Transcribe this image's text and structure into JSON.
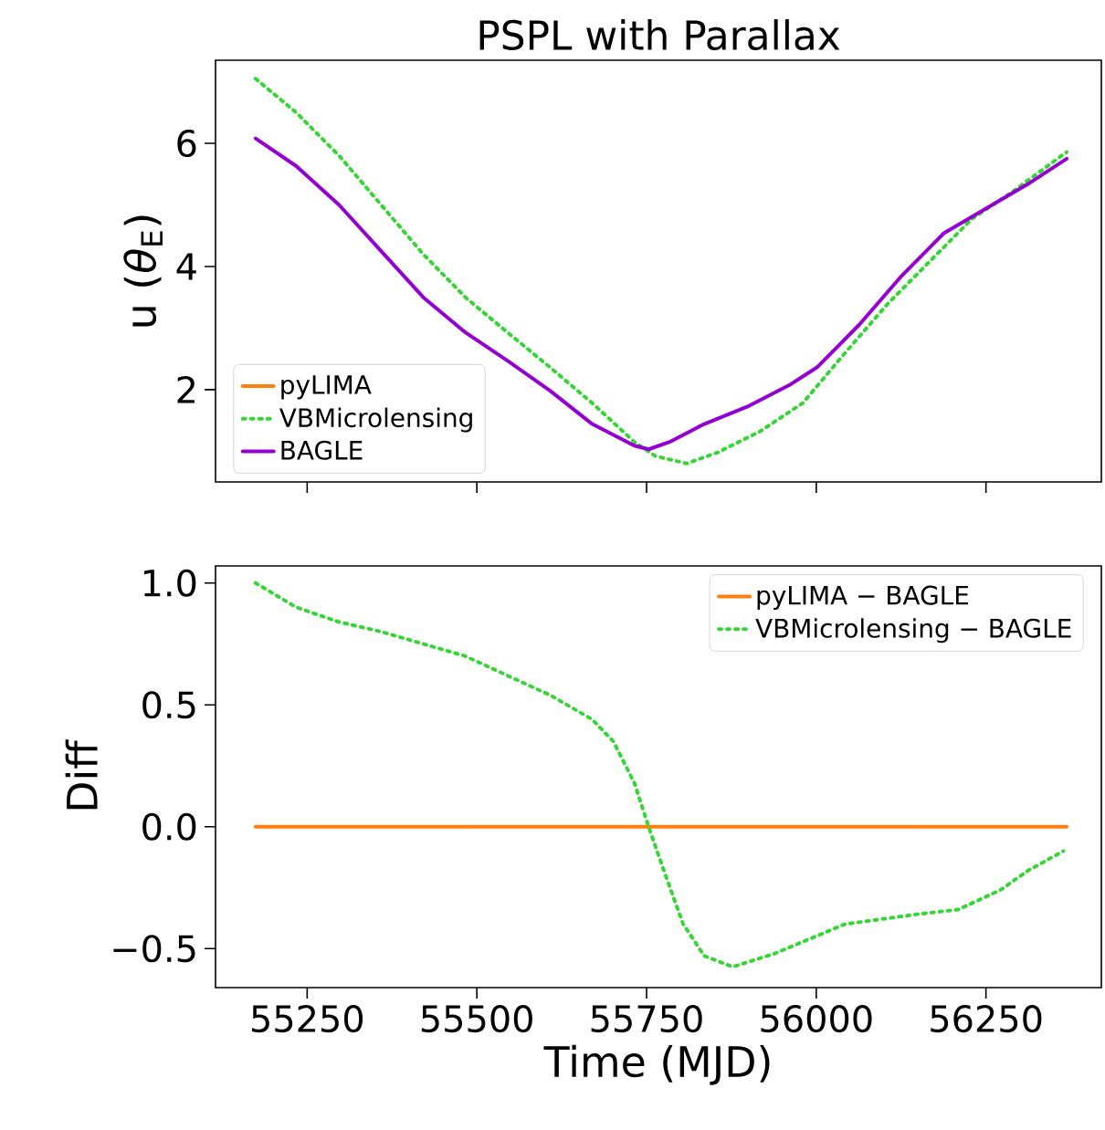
{
  "chart_data": [
    {
      "type": "line",
      "title": "PSPL with Parallax",
      "ylabel": "u (*θ*$_{E}$)",
      "xlim": [
        55115,
        56420
      ],
      "ylim": [
        0.5,
        7.35
      ],
      "xticks": [
        55250,
        55500,
        55750,
        56000,
        56250
      ],
      "yticks": [
        2,
        4,
        6
      ],
      "tick_labels": "y",
      "legend": "bottom left",
      "grid": false,
      "series": [
        {
          "name": "pyLIMA",
          "color": "#ff7f0e",
          "line_style": "solid"
        },
        {
          "name": "VBMicrolensing",
          "color": "#33d633",
          "line_style": "dotted",
          "x": [
            55174,
            55234,
            55297,
            55359,
            55421,
            55483,
            55545,
            55608,
            55670,
            55732,
            55763,
            55809,
            55855,
            55917,
            55980,
            56042,
            56105,
            56167,
            56229,
            56291,
            56369
          ],
          "values": [
            7.05,
            6.5,
            5.8,
            5.0,
            4.2,
            3.5,
            2.93,
            2.36,
            1.78,
            1.15,
            0.92,
            0.8,
            0.98,
            1.32,
            1.78,
            2.59,
            3.39,
            4.08,
            4.77,
            5.23,
            5.86
          ]
        },
        {
          "name": "BAGLE",
          "color": "#9400d3",
          "line_style": "solid",
          "x": [
            55174,
            55234,
            55297,
            55359,
            55421,
            55483,
            55545,
            55608,
            55670,
            55732,
            55753,
            55784,
            55835,
            55898,
            55960,
            56001,
            56063,
            56126,
            56188,
            56250,
            56312,
            56369
          ],
          "values": [
            6.08,
            5.63,
            5.0,
            4.25,
            3.5,
            2.93,
            2.47,
            1.98,
            1.44,
            1.09,
            1.03,
            1.15,
            1.44,
            1.72,
            2.07,
            2.36,
            3.05,
            3.85,
            4.54,
            4.94,
            5.34,
            5.75
          ]
        }
      ]
    },
    {
      "type": "line",
      "xlabel": "Time (MJD)",
      "ylabel": "Diff",
      "xlim": [
        55115,
        56420
      ],
      "ylim": [
        -0.66,
        1.07
      ],
      "xticks": [
        55250,
        55500,
        55750,
        56000,
        56250
      ],
      "yticks": [
        {
          "value": -0.5,
          "label": "−0.5"
        },
        {
          "value": 0,
          "label": "0.0"
        },
        {
          "value": 0.5,
          "label": "0.5"
        },
        {
          "value": 1,
          "label": "1.0"
        }
      ],
      "legend": "top right",
      "grid": false,
      "series": [
        {
          "name": "pyLIMA − BAGLE",
          "color": "#ff7f0e",
          "line_style": "solid",
          "x": [
            55174,
            55753,
            56369
          ],
          "values": [
            0,
            0,
            0
          ]
        },
        {
          "name": "VBMicrolensing − BAGLE",
          "color": "#33d633",
          "line_style": "dotted",
          "x": [
            55174,
            55234,
            55297,
            55359,
            55421,
            55483,
            55545,
            55608,
            55670,
            55701,
            55732,
            55753,
            55778,
            55804,
            55835,
            55877,
            55939,
            56042,
            56146,
            56209,
            56271,
            56312,
            56364
          ],
          "values": [
            1.0,
            0.9,
            0.84,
            0.8,
            0.75,
            0.7,
            0.62,
            0.54,
            0.44,
            0.35,
            0.18,
            0.0,
            -0.2,
            -0.4,
            -0.53,
            -0.575,
            -0.52,
            -0.4,
            -0.36,
            -0.34,
            -0.26,
            -0.18,
            -0.1
          ]
        }
      ]
    }
  ]
}
